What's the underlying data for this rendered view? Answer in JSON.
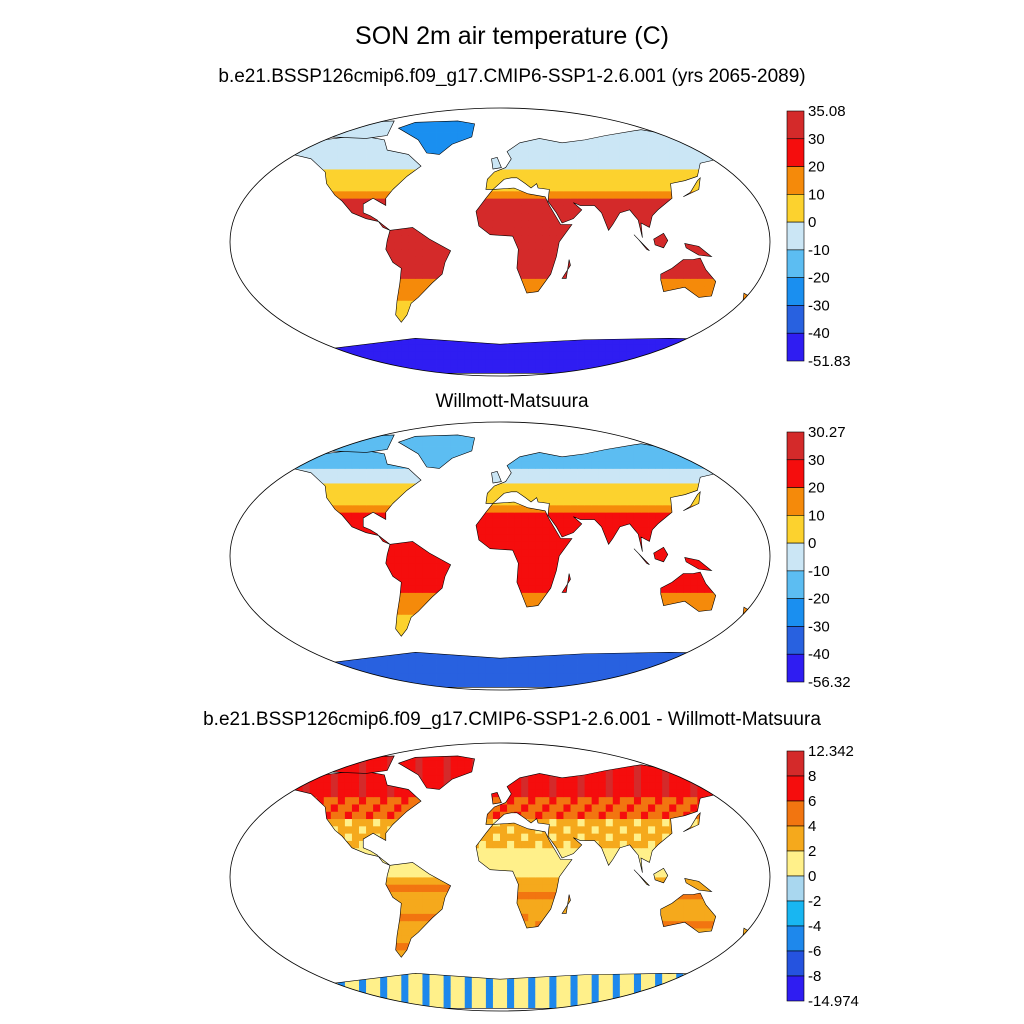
{
  "title": "SON 2m air temperature (C)",
  "panels": [
    {
      "id": "model",
      "title": "b.e21.BSSP126cmip6.f09_g17.CMIP6-SSP1-2.6.001 (yrs 2065-2089)",
      "colorbar": {
        "labels": [
          "35.08",
          "30",
          "20",
          "10",
          "0",
          "-10",
          "-20",
          "-30",
          "-40",
          "-51.83"
        ],
        "colors": [
          "#d42a2a",
          "#f50d0d",
          "#f58a0a",
          "#fcd22e",
          "#cbe6f5",
          "#5cbdf2",
          "#1a8ff0",
          "#2861e0",
          "#2f1df2"
        ]
      }
    },
    {
      "id": "observed",
      "title": "Willmott-Matsuura",
      "colorbar": {
        "labels": [
          "30.27",
          "30",
          "20",
          "10",
          "0",
          "-10",
          "-20",
          "-30",
          "-40",
          "-56.32"
        ],
        "colors": [
          "#d42a2a",
          "#f50d0d",
          "#f58a0a",
          "#fcd22e",
          "#cbe6f5",
          "#5cbdf2",
          "#1a8ff0",
          "#2861e0",
          "#2f1df2"
        ]
      }
    },
    {
      "id": "difference",
      "title": "b.e21.BSSP126cmip6.f09_g17.CMIP6-SSP1-2.6.001 - Willmott-Matsuura",
      "colorbar": {
        "labels": [
          "12.342",
          "8",
          "6",
          "4",
          "2",
          "0",
          "-2",
          "-4",
          "-6",
          "-8",
          "-14.974"
        ],
        "colors": [
          "#d42a2a",
          "#f50d0d",
          "#f27510",
          "#f5a91c",
          "#fff08a",
          "#a9d7ef",
          "#18b6f2",
          "#1e88ec",
          "#2553df",
          "#2f1df2"
        ]
      }
    }
  ]
}
